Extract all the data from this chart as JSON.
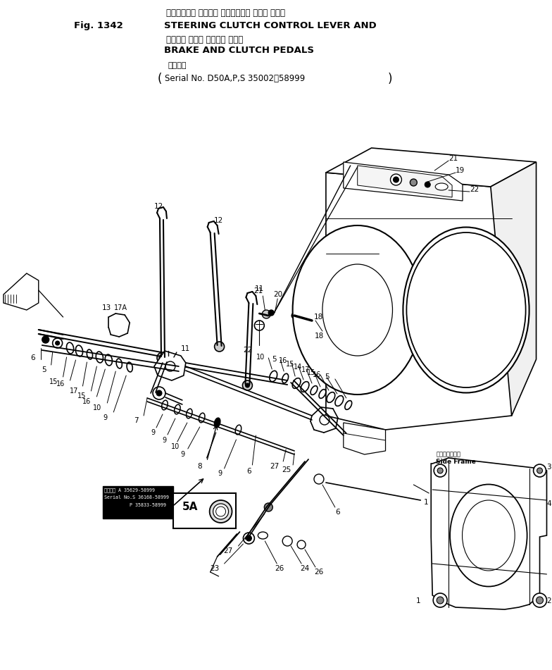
{
  "title_line1_jp": "ステアリング クラッチ コントロール レバー および",
  "title_line1_en": "STEERING CLUTCH CONTROL LEVER AND",
  "title_fig": "Fig. 1342",
  "title_line2_jp": "ブレーキ および クラッチ ペダル",
  "title_line2_en": "BRAKE AND CLUTCH PEDALS",
  "serial_jp": "適用号機",
  "serial_en": "Serial No. D50A,P,S 35002～58999",
  "bg_color": "#ffffff",
  "line_color": "#000000",
  "text_color": "#000000",
  "fig_width": 7.84,
  "fig_height": 9.51,
  "dpi": 100,
  "note_line1": "適用号機 A 35629-58999",
  "note_line2": "Serial No.S 36168-58999",
  "note_line3": "P 35833-58999",
  "side_frame_jp": "サイドフレーム",
  "side_frame_en": "Side Frame"
}
